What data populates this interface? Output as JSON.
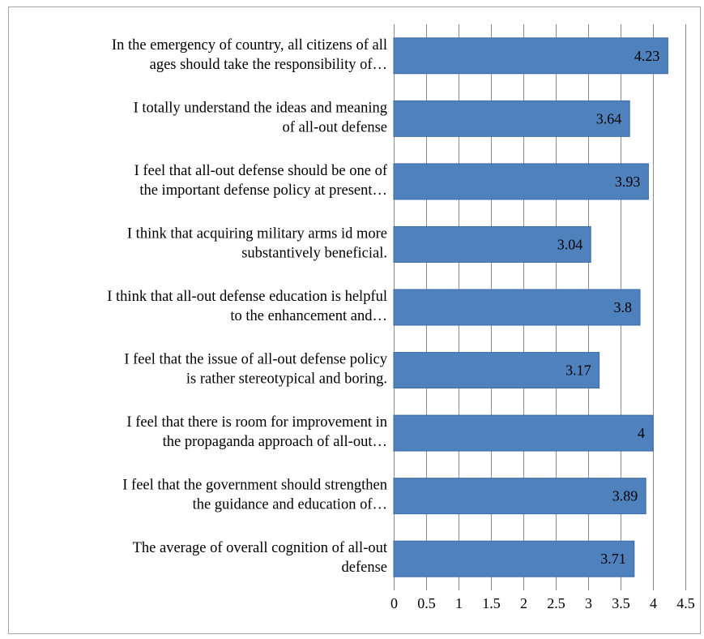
{
  "chart_data": {
    "type": "bar",
    "orientation": "horizontal",
    "categories": [
      [
        "In the emergency of country, all citizens of all",
        "ages should take the responsibility of…"
      ],
      [
        "I totally understand the ideas and meaning",
        "of all-out defense"
      ],
      [
        "I feel  that all-out defense should be one of",
        "the important defense policy at present…"
      ],
      [
        "I think that acquiring military arms id more",
        "substantively beneficial."
      ],
      [
        "I think that all-out defense education is  helpful",
        "to the enhancement and…"
      ],
      [
        "I feel  that the issue of all-out defense policy",
        "is rather stereotypical and boring."
      ],
      [
        "I feel  that there is room for improvement in",
        "the propaganda approach of all-out…"
      ],
      [
        "I feel  that the government should strengthen",
        "the guidance and education of…"
      ],
      [
        "The average of overall cognition of all-out",
        "defense"
      ]
    ],
    "values": [
      4.23,
      3.64,
      3.93,
      3.04,
      3.8,
      3.17,
      4,
      3.89,
      3.71
    ],
    "value_labels": [
      "4.23",
      "3.64",
      "3.93",
      "3.04",
      "3.8",
      "3.17",
      "4",
      "3.89",
      "3.71"
    ],
    "xticks": [
      "0",
      "0.5",
      "1",
      "1.5",
      "2",
      "2.5",
      "3",
      "3.5",
      "4",
      "4.5"
    ],
    "xlim": [
      0,
      4.5
    ],
    "grid": true,
    "legend": "none",
    "bar_color": "#4f81bd",
    "title": "",
    "xlabel": "",
    "ylabel": ""
  }
}
